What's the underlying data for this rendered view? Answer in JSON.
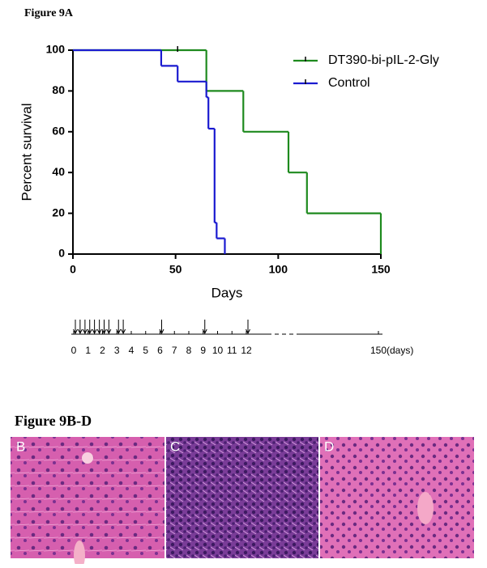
{
  "chart_data": {
    "type": "step",
    "title": "Figure 9A",
    "xlabel": "Days",
    "ylabel": "Percent survival",
    "xlim": [
      0,
      150
    ],
    "xticks": [
      0,
      50,
      100,
      150
    ],
    "ylim": [
      0,
      100
    ],
    "yticks": [
      0,
      20,
      40,
      60,
      80,
      100
    ],
    "legend": "upper right",
    "series": [
      {
        "name": "DT390-bi-pIL-2-Gly",
        "color": "#1e8a1e",
        "x": [
          0,
          65,
          83,
          105,
          114,
          150
        ],
        "values": [
          100,
          80,
          60,
          40,
          20,
          0
        ],
        "censored_x": [
          51
        ],
        "censored_values": [
          100
        ]
      },
      {
        "name": "Control",
        "color": "#1a1ad0",
        "x": [
          0,
          43,
          51,
          65,
          66,
          69,
          70,
          74
        ],
        "values": [
          100,
          92.3,
          84.6,
          76.9,
          61.5,
          15.4,
          7.7,
          0
        ]
      }
    ]
  },
  "timeline": {
    "ticks": [
      0,
      1,
      2,
      3,
      4,
      5,
      6,
      7,
      8,
      9,
      10,
      11,
      12,
      150
    ],
    "unit": "(days)",
    "doses": [
      0,
      0.33,
      0.67,
      1,
      1.33,
      1.67,
      2,
      2.33,
      3,
      3.33,
      6,
      9,
      12
    ]
  },
  "panels": {
    "title": "Figure 9B-D",
    "labels": [
      "B",
      "C",
      "D"
    ]
  }
}
